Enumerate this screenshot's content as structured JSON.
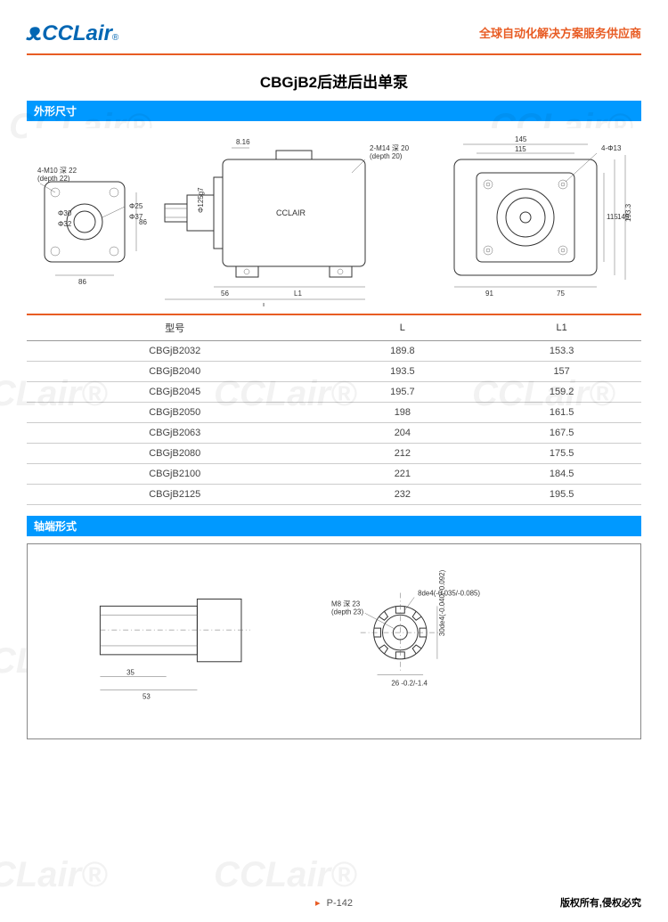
{
  "header": {
    "logo_prefix": "CC",
    "logo_text": "CCLair",
    "reg_mark": "®",
    "slogan": "全球自动化解决方案服务供应商"
  },
  "title": "CBGjB2后进后出单泵",
  "sections": {
    "dimensions": "外形尺寸",
    "shaft": "轴端形式"
  },
  "drawing_labels": {
    "left_flange_bolt": "4-M10 深 22",
    "left_flange_bolt_en": "(depth 22)",
    "left_d30": "Φ30",
    "left_d32": "Φ32",
    "left_d25": "Φ25",
    "left_d37": "Φ37",
    "left_86v": "86",
    "left_86h": "86",
    "center_d125": "Φ125g7",
    "center_816": "8.16",
    "center_56": "56",
    "center_L1": "L1",
    "center_L": "L",
    "center_brand": "CCLAIR",
    "right_port": "2-M14 深 20",
    "right_port_en": "(depth 20)",
    "right_bolt": "4-Φ13",
    "right_145": "145",
    "right_115t": "115",
    "right_115r": "115",
    "right_145r": "145",
    "right_1933": "193.3",
    "right_91": "91",
    "right_75": "75"
  },
  "table": {
    "columns": [
      "型号",
      "L",
      "L1"
    ],
    "rows": [
      [
        "CBGjB2032",
        "189.8",
        "153.3"
      ],
      [
        "CBGjB2040",
        "193.5",
        "157"
      ],
      [
        "CBGjB2045",
        "195.7",
        "159.2"
      ],
      [
        "CBGjB2050",
        "198",
        "161.5"
      ],
      [
        "CBGjB2063",
        "204",
        "167.5"
      ],
      [
        "CBGjB2080",
        "212",
        "175.5"
      ],
      [
        "CBGjB2100",
        "221",
        "184.5"
      ],
      [
        "CBGjB2125",
        "232",
        "195.5"
      ]
    ],
    "header_border_color": "#e85c24",
    "row_border_color": "#cccccc",
    "font_size": 11
  },
  "shaft_labels": {
    "dim_35": "35",
    "dim_53": "53",
    "spline_8de4": "8de4(-0.035/-0.085)",
    "m8": "M8 深 23",
    "m8_en": "(depth 23)",
    "d30de4": "30de4(-0.040/-0.092)",
    "dim_26": "26 -0.2/-1.4"
  },
  "footer": {
    "page": "P-142",
    "copyright": "版权所有,侵权必究"
  },
  "colors": {
    "brand_blue": "#0066b3",
    "section_blue": "#0099ff",
    "accent_orange": "#e85c24",
    "text": "#333333"
  }
}
